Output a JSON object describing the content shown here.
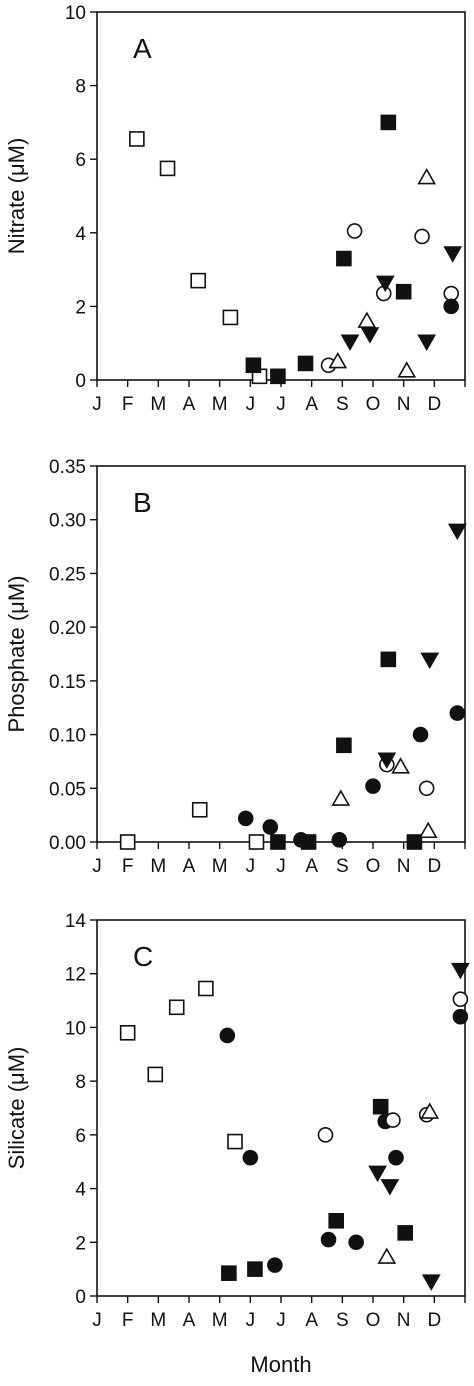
{
  "chart_data": [
    {
      "type": "scatter",
      "panel_label": "A",
      "ylabel": "Nitrate (μM)",
      "xlabel": "",
      "x_tick_labels": [
        "J",
        "F",
        "M",
        "A",
        "M",
        "J",
        "J",
        "A",
        "S",
        "O",
        "N",
        "D"
      ],
      "xlim": [
        0,
        12
      ],
      "ylim": [
        0,
        10
      ],
      "y_ticks": [
        "0",
        "2",
        "4",
        "6",
        "8",
        "10"
      ],
      "grid": false,
      "series": [
        {
          "marker": "open-square",
          "points": [
            [
              1.3,
              6.55
            ],
            [
              2.3,
              5.75
            ],
            [
              3.3,
              2.7
            ],
            [
              4.35,
              1.7
            ],
            [
              5.3,
              0.1
            ]
          ]
        },
        {
          "marker": "filled-square",
          "points": [
            [
              5.1,
              0.4
            ],
            [
              5.9,
              0.1
            ],
            [
              6.8,
              0.45
            ],
            [
              8.05,
              3.3
            ],
            [
              9.5,
              7.0
            ],
            [
              10.0,
              2.4
            ]
          ]
        },
        {
          "marker": "open-circle",
          "points": [
            [
              7.55,
              0.4
            ],
            [
              8.4,
              4.05
            ],
            [
              9.35,
              2.35
            ],
            [
              10.6,
              3.9
            ],
            [
              11.55,
              2.35
            ]
          ]
        },
        {
          "marker": "filled-circle",
          "points": [
            [
              11.55,
              2.0
            ]
          ]
        },
        {
          "marker": "open-triangle",
          "points": [
            [
              7.85,
              0.5
            ],
            [
              8.8,
              1.6
            ],
            [
              10.1,
              0.25
            ],
            [
              10.75,
              5.5
            ]
          ]
        },
        {
          "marker": "filled-triangle-down",
          "points": [
            [
              8.25,
              1.05
            ],
            [
              8.9,
              1.25
            ],
            [
              9.4,
              2.65
            ],
            [
              10.75,
              1.05
            ],
            [
              11.6,
              3.45
            ]
          ]
        }
      ]
    },
    {
      "type": "scatter",
      "panel_label": "B",
      "ylabel": "Phosphate (μM)",
      "xlabel": "",
      "x_tick_labels": [
        "J",
        "F",
        "M",
        "A",
        "M",
        "J",
        "J",
        "A",
        "S",
        "O",
        "N",
        "D"
      ],
      "xlim": [
        0,
        12
      ],
      "ylim": [
        0,
        0.35
      ],
      "y_ticks": [
        "0.00",
        "0.05",
        "0.10",
        "0.15",
        "0.20",
        "0.25",
        "0.30",
        "0.35"
      ],
      "grid": false,
      "series": [
        {
          "marker": "open-square",
          "points": [
            [
              1.0,
              0.0
            ],
            [
              3.35,
              0.03
            ],
            [
              5.2,
              0.0
            ]
          ]
        },
        {
          "marker": "filled-square",
          "points": [
            [
              5.9,
              0.0
            ],
            [
              6.9,
              0.0
            ],
            [
              8.05,
              0.09
            ],
            [
              9.5,
              0.17
            ],
            [
              10.35,
              0.0
            ]
          ]
        },
        {
          "marker": "filled-circle",
          "points": [
            [
              4.85,
              0.022
            ],
            [
              5.65,
              0.014
            ],
            [
              6.65,
              0.002
            ],
            [
              7.9,
              0.002
            ],
            [
              9.0,
              0.052
            ],
            [
              10.55,
              0.1
            ],
            [
              11.75,
              0.12
            ]
          ]
        },
        {
          "marker": "open-circle",
          "points": [
            [
              9.45,
              0.072
            ],
            [
              10.75,
              0.05
            ]
          ]
        },
        {
          "marker": "open-triangle",
          "points": [
            [
              7.95,
              0.04
            ],
            [
              9.9,
              0.07
            ],
            [
              10.8,
              0.01
            ]
          ]
        },
        {
          "marker": "filled-triangle-down",
          "points": [
            [
              9.45,
              0.077
            ],
            [
              10.85,
              0.17
            ],
            [
              11.75,
              0.29
            ]
          ]
        }
      ]
    },
    {
      "type": "scatter",
      "panel_label": "C",
      "ylabel": "Silicate (μM)",
      "xlabel": "Month",
      "x_tick_labels": [
        "J",
        "F",
        "M",
        "A",
        "M",
        "J",
        "J",
        "A",
        "S",
        "O",
        "N",
        "D"
      ],
      "xlim": [
        0,
        12
      ],
      "ylim": [
        0,
        14
      ],
      "y_ticks": [
        "0",
        "2",
        "4",
        "6",
        "8",
        "10",
        "12",
        "14"
      ],
      "grid": false,
      "series": [
        {
          "marker": "open-square",
          "points": [
            [
              1.0,
              9.8
            ],
            [
              1.9,
              8.25
            ],
            [
              2.6,
              10.75
            ],
            [
              3.55,
              11.45
            ],
            [
              4.5,
              5.75
            ]
          ]
        },
        {
          "marker": "filled-square",
          "points": [
            [
              4.3,
              0.85
            ],
            [
              5.15,
              1.0
            ],
            [
              7.8,
              2.8
            ],
            [
              9.25,
              7.05
            ],
            [
              10.05,
              2.35
            ]
          ]
        },
        {
          "marker": "filled-circle",
          "points": [
            [
              4.25,
              9.7
            ],
            [
              5.0,
              5.15
            ],
            [
              5.8,
              1.15
            ],
            [
              7.55,
              2.1
            ],
            [
              8.45,
              2.0
            ],
            [
              9.75,
              5.15
            ],
            [
              9.4,
              6.5
            ],
            [
              11.85,
              10.4
            ]
          ]
        },
        {
          "marker": "open-circle",
          "points": [
            [
              7.45,
              6.0
            ],
            [
              9.65,
              6.55
            ],
            [
              10.75,
              6.75
            ],
            [
              11.85,
              11.05
            ]
          ]
        },
        {
          "marker": "open-triangle",
          "points": [
            [
              9.45,
              1.45
            ],
            [
              10.85,
              6.85
            ]
          ]
        },
        {
          "marker": "filled-triangle-down",
          "points": [
            [
              9.15,
              4.6
            ],
            [
              9.55,
              4.1
            ],
            [
              10.9,
              0.55
            ],
            [
              11.85,
              12.15
            ]
          ]
        }
      ]
    }
  ]
}
